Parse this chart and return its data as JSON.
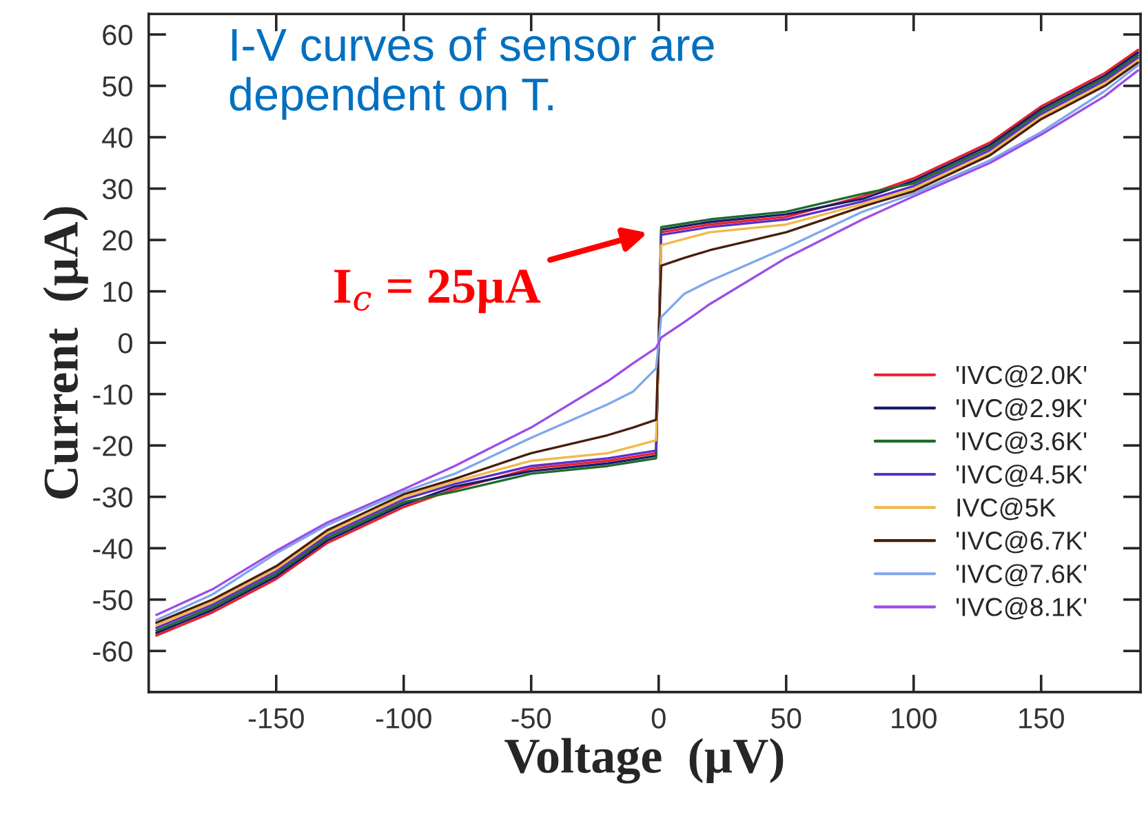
{
  "chart_data": {
    "type": "line",
    "xlabel": "Voltage  (µV)",
    "ylabel": "Current  (µA)",
    "x": [
      -197,
      -175,
      -150,
      -130,
      -100,
      -80,
      -50,
      -20,
      -10,
      -1,
      1,
      10,
      20,
      50,
      80,
      100,
      130,
      150,
      175,
      188
    ],
    "xlim": [
      -200,
      189
    ],
    "xticks": [
      -150,
      -100,
      -50,
      0,
      50,
      100,
      150
    ],
    "ylim": [
      -68,
      64
    ],
    "yticks": [
      -60,
      -50,
      -40,
      -30,
      -20,
      -10,
      0,
      10,
      20,
      30,
      40,
      50,
      60
    ],
    "grid": false,
    "legend": "bottom right",
    "line_style": "solid",
    "marker": "none",
    "series": [
      {
        "name": "'IVC@2.0K'",
        "color": "#e8202a",
        "values": [
          -57,
          -52.5,
          -46,
          -39,
          -32,
          -28.5,
          -24.5,
          -23,
          -22.2,
          -21.5,
          21.5,
          22.2,
          23,
          24.5,
          28.5,
          32,
          39,
          46,
          52.5,
          57
        ]
      },
      {
        "name": "'IVC@2.9K'",
        "color": "#1a1a6e",
        "values": [
          -56.5,
          -52,
          -45.5,
          -38.5,
          -31.5,
          -28,
          -25,
          -23.5,
          -22.7,
          -22,
          22,
          22.7,
          23.5,
          25,
          28,
          31.5,
          38.5,
          45.5,
          52,
          56.5
        ]
      },
      {
        "name": "'IVC@3.6K'",
        "color": "#1e6b2a",
        "values": [
          -56,
          -51.5,
          -45,
          -38,
          -31,
          -29,
          -25.5,
          -24,
          -23.2,
          -22.5,
          22.5,
          23.2,
          24,
          25.5,
          29,
          31,
          38,
          45,
          51.5,
          56
        ]
      },
      {
        "name": "'IVC@4.5K'",
        "color": "#5b2fc9",
        "values": [
          -55.5,
          -51,
          -44.5,
          -37.5,
          -30.5,
          -27.5,
          -24,
          -22.5,
          -21.7,
          -21,
          21,
          21.7,
          22.5,
          24,
          27.5,
          30.5,
          37.5,
          44.5,
          51,
          55.5
        ]
      },
      {
        "name": "IVC@5K",
        "color": "#f2b84b",
        "values": [
          -55,
          -50.5,
          -44,
          -37,
          -30,
          -27,
          -23,
          -21.5,
          -20.2,
          -19,
          19,
          20.2,
          21.5,
          23,
          27,
          30,
          37,
          44,
          50.5,
          55
        ]
      },
      {
        "name": "'IVC@6.7K'",
        "color": "#4a1e0a",
        "values": [
          -54.5,
          -50,
          -43.5,
          -36.5,
          -29.5,
          -26.5,
          -21.5,
          -18,
          -16.5,
          -15,
          15,
          16.5,
          18,
          21.5,
          26.5,
          29.5,
          36.5,
          43.5,
          50,
          54.5
        ]
      },
      {
        "name": "'IVC@7.6K'",
        "color": "#7fa6ee",
        "values": [
          -54,
          -49,
          -41,
          -35.5,
          -29,
          -25.5,
          -18.5,
          -12,
          -9.5,
          -5,
          5,
          9.5,
          12,
          18.5,
          25.5,
          29,
          35.5,
          41,
          49,
          54
        ]
      },
      {
        "name": "'IVC@8.1K'",
        "color": "#9b4de8",
        "values": [
          -53,
          -48,
          -40.5,
          -35,
          -28.5,
          -24,
          -16.5,
          -7.5,
          -4,
          -1,
          1,
          4,
          7.5,
          16.5,
          24,
          28.5,
          35,
          40.5,
          48,
          53
        ]
      }
    ],
    "annotations": [
      "I-V curves of sensor are dependent on T.",
      {
        "text": "I$_{c}$ = 25µA",
        "x": 0,
        "y": 22
      }
    ]
  }
}
